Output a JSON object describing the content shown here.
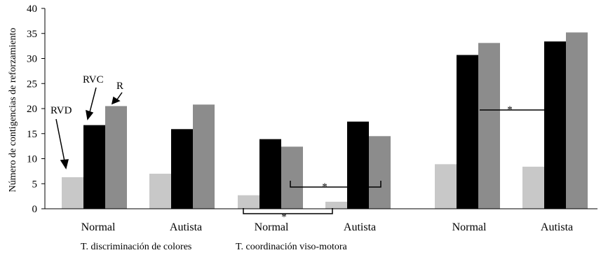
{
  "chart_data": {
    "type": "bar",
    "ylabel": "Número de contigencias de reforzamiento",
    "ylim": [
      0,
      40
    ],
    "yticks": [
      0,
      5,
      10,
      15,
      20,
      25,
      30,
      35,
      40
    ],
    "categories": [
      "Normal",
      "Autista",
      "Normal",
      "Autista",
      "Normal",
      "Autista"
    ],
    "group_labels": [
      "T. discriminación de colores",
      "T. coordinación viso-motora",
      ""
    ],
    "series": [
      {
        "name": "RVD",
        "color": "#c8c8c8",
        "values": [
          6.3,
          7.0,
          2.7,
          1.4,
          8.9,
          8.4
        ]
      },
      {
        "name": "RVC",
        "color": "#000000",
        "values": [
          16.7,
          15.9,
          13.9,
          17.4,
          30.7,
          33.4
        ]
      },
      {
        "name": "R",
        "color": "#8c8c8c",
        "values": [
          20.5,
          20.8,
          12.4,
          14.5,
          33.1,
          35.2
        ]
      }
    ],
    "annotations": {
      "rvd_label": "RVD",
      "rvc_label": "RVC",
      "r_label": "R",
      "significance_mark": "*"
    }
  }
}
